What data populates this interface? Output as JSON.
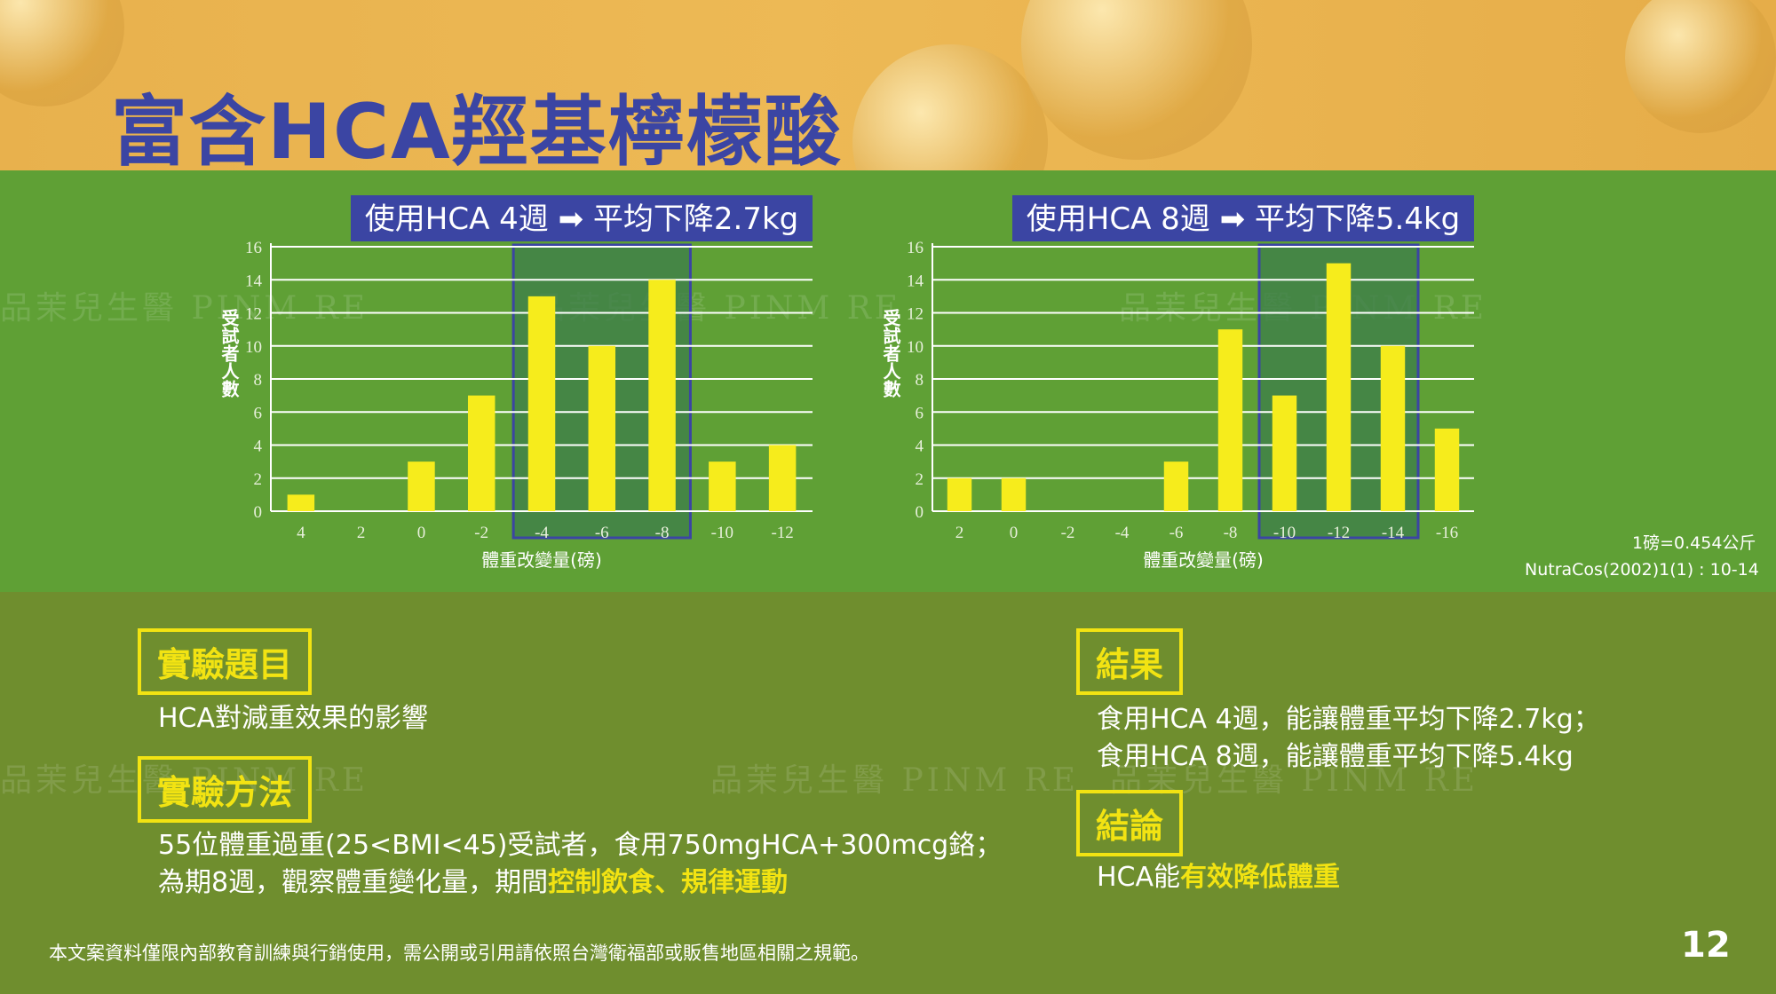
{
  "title": "富含HCA羥基檸檬酸",
  "watermark_text": "品茉兒生醫 PINM RE",
  "conversion_note": "1磅=0.454公斤",
  "citation": "NutraCos(2002)1(1) : 10-14",
  "colors": {
    "bar": "#f6ec1c",
    "highlight_bg": "#3f7f4a",
    "highlight_border": "#3b45a3",
    "banner": "#3b45a3",
    "accent": "#f2e312"
  },
  "chart_data": [
    {
      "type": "bar",
      "title": "使用HCA 4週 ➡ 平均下降2.7kg",
      "xlabel": "體重改變量(磅)",
      "ylabel": "受試者人數",
      "categories": [
        "4",
        "2",
        "0",
        "-2",
        "-4",
        "-6",
        "-8",
        "-10",
        "-12"
      ],
      "values": [
        1,
        0,
        3,
        7,
        13,
        10,
        14,
        3,
        4
      ],
      "ylim": [
        0,
        16
      ],
      "yticks": [
        0,
        2,
        4,
        6,
        8,
        10,
        12,
        14,
        16
      ],
      "highlight_categories": [
        "-4",
        "-6",
        "-8"
      ],
      "grid": true
    },
    {
      "type": "bar",
      "title": "使用HCA 8週 ➡ 平均下降5.4kg",
      "xlabel": "體重改變量(磅)",
      "ylabel": "受試者人數",
      "categories": [
        "2",
        "0",
        "-2",
        "-4",
        "-6",
        "-8",
        "-10",
        "-12",
        "-14",
        "-16"
      ],
      "values": [
        2,
        2,
        0,
        0,
        3,
        11,
        7,
        15,
        10,
        5
      ],
      "ylim": [
        0,
        16
      ],
      "yticks": [
        0,
        2,
        4,
        6,
        8,
        10,
        12,
        14,
        16
      ],
      "highlight_categories": [
        "-10",
        "-12",
        "-14"
      ],
      "grid": true
    }
  ],
  "sections": {
    "subject": {
      "label": "實驗題目",
      "text": "HCA對減重效果的影響"
    },
    "method": {
      "label": "實驗方法",
      "line1": "55位體重過重(25<BMI<45)受試者，食用750mgHCA+300mcg鉻；",
      "line2_prefix": "為期8週，觀察體重變化量，期間",
      "line2_highlight": "控制飲食、規律運動"
    },
    "result": {
      "label": "結果",
      "line1": "食用HCA 4週，能讓體重平均下降2.7kg；",
      "line2": "食用HCA 8週，能讓體重平均下降5.4kg"
    },
    "conclusion": {
      "label": "結論",
      "prefix": "HCA能",
      "highlight": "有效降低體重"
    }
  },
  "footer": "本文案資料僅限內部教育訓練與行銷使用，需公開或引用請依照台灣衛福部或販售地區相關之規範。",
  "page_number": "12"
}
